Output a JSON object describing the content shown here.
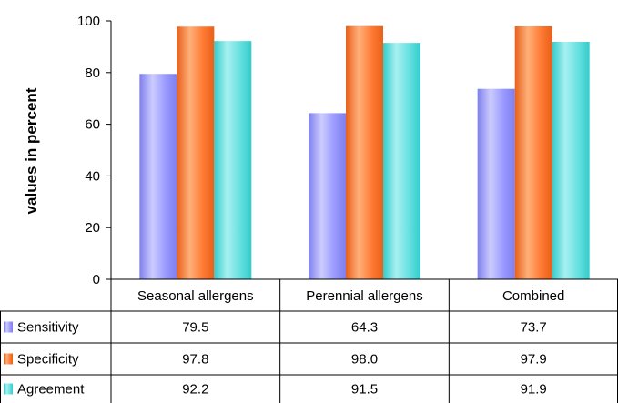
{
  "chart_data": {
    "type": "bar",
    "ylabel": "values in percent",
    "ylim": [
      0,
      100
    ],
    "yticks": [
      0,
      20,
      40,
      60,
      80,
      100
    ],
    "grid": false,
    "legend": "data-table-left",
    "categories": [
      "Seasonal allergens",
      "Perennial allergens",
      "Combined"
    ],
    "series": [
      {
        "name": "Sensitivity",
        "values": [
          79.5,
          64.3,
          73.7
        ],
        "labels": [
          "79.5",
          "64.3",
          "73.7"
        ],
        "color": "#9999ff",
        "light": "#ccccff",
        "dark": "#7f7fee"
      },
      {
        "name": "Specificity",
        "values": [
          97.8,
          98.0,
          97.9
        ],
        "labels": [
          "97.8",
          "98.0",
          "97.9"
        ],
        "color": "#ff7a33",
        "light": "#ffb07a",
        "dark": "#e8601a"
      },
      {
        "name": "Agreement",
        "values": [
          92.2,
          91.5,
          91.9
        ],
        "labels": [
          "92.2",
          "91.5",
          "91.9"
        ],
        "color": "#66e0e0",
        "light": "#a8f0f0",
        "dark": "#33cccc"
      }
    ]
  }
}
